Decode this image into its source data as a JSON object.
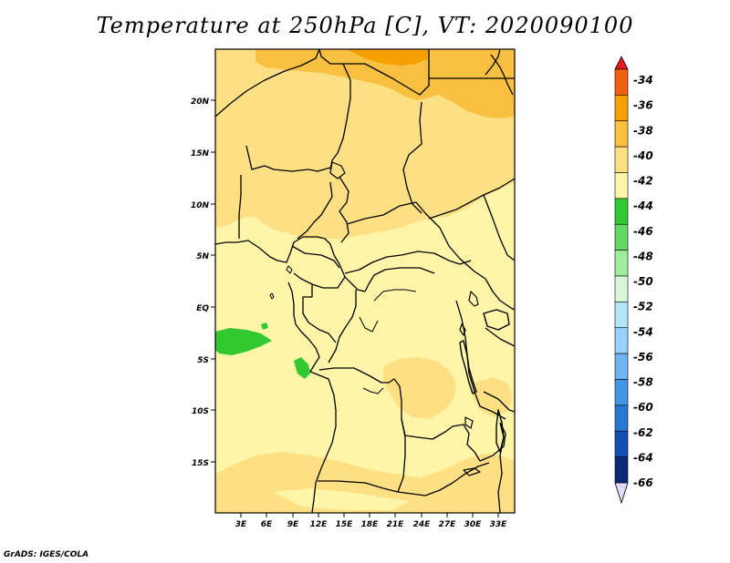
{
  "title": "Temperature at 250hPa [C], VT: 2020090100",
  "credit": "GrADS: IGES/COLA",
  "lat_labels": [
    "20N",
    "15N",
    "10N",
    "5N",
    "EQ",
    "5S",
    "10S",
    "15S"
  ],
  "lon_labels": [
    "3E",
    "6E",
    "9E",
    "12E",
    "15E",
    "18E",
    "21E",
    "24E",
    "27E",
    "30E",
    "33E"
  ],
  "colorbar": {
    "labels": [
      "-34",
      "-36",
      "-38",
      "-40",
      "-42",
      "-44",
      "-46",
      "-48",
      "-50",
      "-52",
      "-54",
      "-56",
      "-58",
      "-60",
      "-62",
      "-64",
      "-66"
    ],
    "colors": [
      "#e41a1c",
      "#f06010",
      "#f5a000",
      "#f8c040",
      "#fde083",
      "#fff5a8",
      "#32c832",
      "#64d864",
      "#a0eca0",
      "#d8f8d8",
      "#b4e6fa",
      "#96d2fa",
      "#6eb4f0",
      "#4696e6",
      "#2878d2",
      "#1450b4",
      "#0a2878",
      "#dcdcf8"
    ]
  },
  "legend_values": {
    "fill_colors": {
      "minus42_to_minus44": "#fff5a8",
      "minus40_to_minus42": "#fde083",
      "minus38_to_minus40": "#f8c040",
      "minus36_to_minus38": "#f5a000",
      "minus44_to_minus46": "#32c832"
    }
  }
}
